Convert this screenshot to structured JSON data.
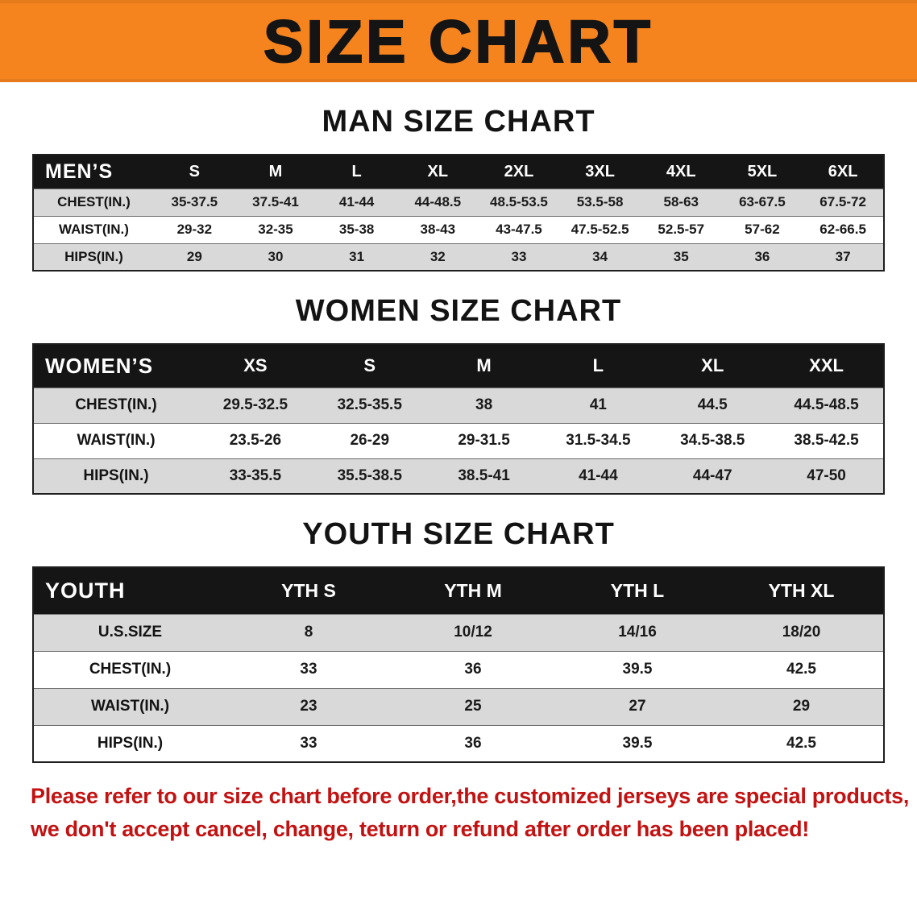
{
  "banner": {
    "title": "SIZE CHART"
  },
  "colors": {
    "banner_bg": "#f5831e",
    "header_band": "#151515",
    "row_stripe": "#d9d9d9",
    "disclaimer_text": "#c21212"
  },
  "sections": [
    {
      "id": "men",
      "heading": "MAN SIZE CHART",
      "table": {
        "corner": "MEN’S",
        "columns": [
          "S",
          "M",
          "L",
          "XL",
          "2XL",
          "3XL",
          "4XL",
          "5XL",
          "6XL"
        ],
        "rows": [
          {
            "label": "CHEST(IN.)",
            "values": [
              "35-37.5",
              "37.5-41",
              "41-44",
              "44-48.5",
              "48.5-53.5",
              "53.5-58",
              "58-63",
              "63-67.5",
              "67.5-72"
            ]
          },
          {
            "label": "WAIST(IN.)",
            "values": [
              "29-32",
              "32-35",
              "35-38",
              "38-43",
              "43-47.5",
              "47.5-52.5",
              "52.5-57",
              "57-62",
              "62-66.5"
            ]
          },
          {
            "label": "HIPS(IN.)",
            "values": [
              "29",
              "30",
              "31",
              "32",
              "33",
              "34",
              "35",
              "36",
              "37"
            ]
          }
        ]
      }
    },
    {
      "id": "women",
      "heading": "WOMEN SIZE CHART",
      "table": {
        "corner": "WOMEN’S",
        "columns": [
          "XS",
          "S",
          "M",
          "L",
          "XL",
          "XXL"
        ],
        "rows": [
          {
            "label": "CHEST(IN.)",
            "values": [
              "29.5-32.5",
              "32.5-35.5",
              "38",
              "41",
              "44.5",
              "44.5-48.5"
            ]
          },
          {
            "label": "WAIST(IN.)",
            "values": [
              "23.5-26",
              "26-29",
              "29-31.5",
              "31.5-34.5",
              "34.5-38.5",
              "38.5-42.5"
            ]
          },
          {
            "label": "HIPS(IN.)",
            "values": [
              "33-35.5",
              "35.5-38.5",
              "38.5-41",
              "41-44",
              "44-47",
              "47-50"
            ]
          }
        ]
      }
    },
    {
      "id": "youth",
      "heading": "YOUTH SIZE CHART",
      "table": {
        "corner": "YOUTH",
        "columns": [
          "YTH S",
          "YTH M",
          "YTH L",
          "YTH XL"
        ],
        "rows": [
          {
            "label": "U.S.SIZE",
            "values": [
              "8",
              "10/12",
              "14/16",
              "18/20"
            ]
          },
          {
            "label": "CHEST(IN.)",
            "values": [
              "33",
              "36",
              "39.5",
              "42.5"
            ]
          },
          {
            "label": "WAIST(IN.)",
            "values": [
              "23",
              "25",
              "27",
              "29"
            ]
          },
          {
            "label": "HIPS(IN.)",
            "values": [
              "33",
              "36",
              "39.5",
              "42.5"
            ]
          }
        ]
      }
    }
  ],
  "disclaimer": {
    "lines": [
      "Please refer to our size chart before order,the customized jerseys are special products,",
      "we don't accept cancel, change, teturn or refund after order has been placed!"
    ]
  }
}
